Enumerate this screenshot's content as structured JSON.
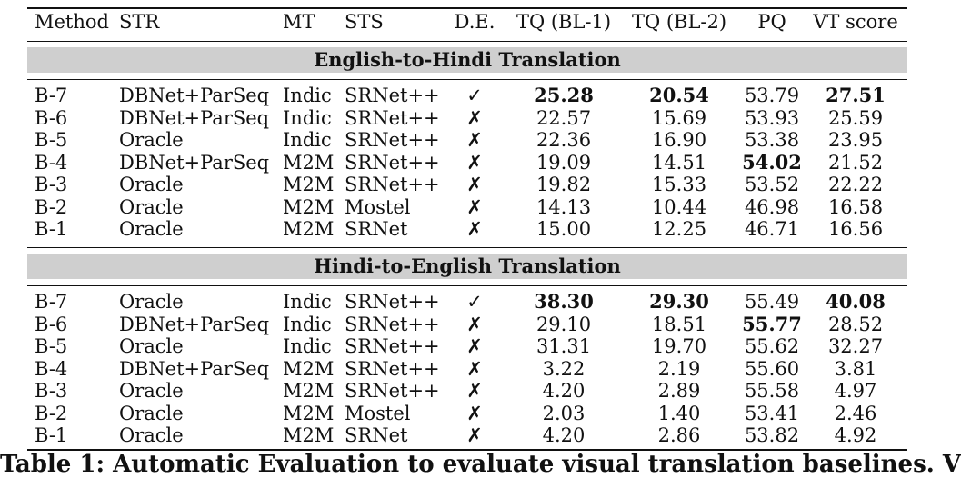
{
  "columns": [
    "Method",
    "STR",
    "MT",
    "STS",
    "D.E.",
    "TQ (BL-1)",
    "TQ (BL-2)",
    "PQ",
    "VT score"
  ],
  "sections": [
    {
      "title": "English-to-Hindi Translation",
      "rows": [
        {
          "method": "B-7",
          "str": "DBNet+ParSeq",
          "mt": "Indic",
          "sts": "SRNet++",
          "de": "✓",
          "tq1": "25.28",
          "tq2": "20.54",
          "pq": "53.79",
          "vt": "27.51",
          "bold": [
            "tq1",
            "tq2",
            "vt"
          ]
        },
        {
          "method": "B-6",
          "str": "DBNet+ParSeq",
          "mt": "Indic",
          "sts": "SRNet++",
          "de": "✗",
          "tq1": "22.57",
          "tq2": "15.69",
          "pq": "53.93",
          "vt": "25.59",
          "bold": []
        },
        {
          "method": "B-5",
          "str": "Oracle",
          "mt": "Indic",
          "sts": "SRNet++",
          "de": "✗",
          "tq1": "22.36",
          "tq2": "16.90",
          "pq": "53.38",
          "vt": "23.95",
          "bold": []
        },
        {
          "method": "B-4",
          "str": "DBNet+ParSeq",
          "mt": "M2M",
          "sts": "SRNet++",
          "de": "✗",
          "tq1": "19.09",
          "tq2": "14.51",
          "pq": "54.02",
          "vt": "21.52",
          "bold": [
            "pq"
          ]
        },
        {
          "method": "B-3",
          "str": "Oracle",
          "mt": "M2M",
          "sts": "SRNet++",
          "de": "✗",
          "tq1": "19.82",
          "tq2": "15.33",
          "pq": "53.52",
          "vt": "22.22",
          "bold": []
        },
        {
          "method": "B-2",
          "str": "Oracle",
          "mt": "M2M",
          "sts": "Mostel",
          "de": "✗",
          "tq1": "14.13",
          "tq2": "10.44",
          "pq": "46.98",
          "vt": "16.58",
          "bold": []
        },
        {
          "method": "B-1",
          "str": "Oracle",
          "mt": "M2M",
          "sts": "SRNet",
          "de": "✗",
          "tq1": "15.00",
          "tq2": "12.25",
          "pq": "46.71",
          "vt": "16.56",
          "bold": []
        }
      ]
    },
    {
      "title": "Hindi-to-English Translation",
      "rows": [
        {
          "method": "B-7",
          "str": "Oracle",
          "mt": "Indic",
          "sts": "SRNet++",
          "de": "✓",
          "tq1": "38.30",
          "tq2": "29.30",
          "pq": "55.49",
          "vt": "40.08",
          "bold": [
            "tq1",
            "tq2",
            "vt"
          ]
        },
        {
          "method": "B-6",
          "str": "DBNet+ParSeq",
          "mt": "Indic",
          "sts": "SRNet++",
          "de": "✗",
          "tq1": "29.10",
          "tq2": "18.51",
          "pq": "55.77",
          "vt": "28.52",
          "bold": [
            "pq"
          ]
        },
        {
          "method": "B-5",
          "str": "Oracle",
          "mt": "Indic",
          "sts": "SRNet++",
          "de": "✗",
          "tq1": "31.31",
          "tq2": "19.70",
          "pq": "55.62",
          "vt": "32.27",
          "bold": []
        },
        {
          "method": "B-4",
          "str": "DBNet+ParSeq",
          "mt": "M2M",
          "sts": "SRNet++",
          "de": "✗",
          "tq1": "3.22",
          "tq2": "2.19",
          "pq": "55.60",
          "vt": "3.81",
          "bold": []
        },
        {
          "method": "B-3",
          "str": "Oracle",
          "mt": "M2M",
          "sts": "SRNet++",
          "de": "✗",
          "tq1": "4.20",
          "tq2": "2.89",
          "pq": "55.58",
          "vt": "4.97",
          "bold": []
        },
        {
          "method": "B-2",
          "str": "Oracle",
          "mt": "M2M",
          "sts": "Mostel",
          "de": "✗",
          "tq1": "2.03",
          "tq2": "1.40",
          "pq": "53.41",
          "vt": "2.46",
          "bold": []
        },
        {
          "method": "B-1",
          "str": "Oracle",
          "mt": "M2M",
          "sts": "SRNet",
          "de": "✗",
          "tq1": "4.20",
          "tq2": "2.86",
          "pq": "53.82",
          "vt": "4.92",
          "bold": []
        }
      ]
    }
  ],
  "caption": "Table 1: Automatic Evaluation to evaluate visual translation baselines. V",
  "colors": {
    "section_band": "#cfcfcf",
    "text": "#111111"
  }
}
